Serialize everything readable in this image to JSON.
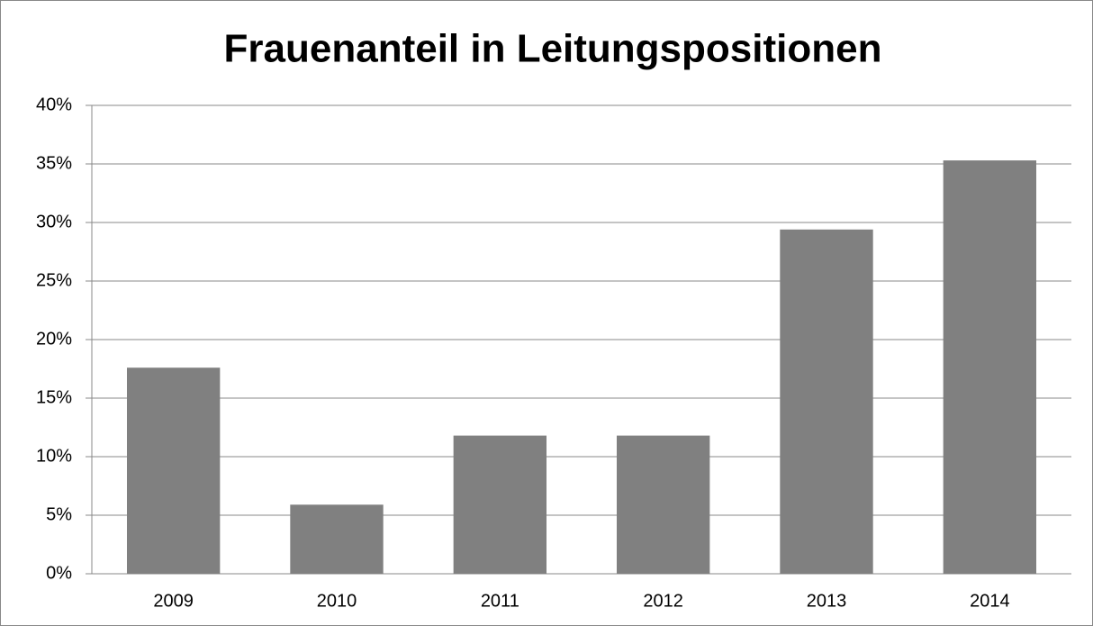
{
  "chart_data": {
    "type": "bar",
    "title": "Frauenanteil in Leitungspositionen",
    "categories": [
      "2009",
      "2010",
      "2011",
      "2012",
      "2013",
      "2014"
    ],
    "values": [
      17.6,
      5.9,
      11.8,
      11.8,
      29.4,
      35.3
    ],
    "color": "#808080",
    "ylim": [
      0,
      40
    ],
    "yticks": [
      {
        "value": 0,
        "label": "0%"
      },
      {
        "value": 5,
        "label": "5%"
      },
      {
        "value": 10,
        "label": "10%"
      },
      {
        "value": 15,
        "label": "15%"
      },
      {
        "value": 20,
        "label": "20%"
      },
      {
        "value": 25,
        "label": "25%"
      },
      {
        "value": 30,
        "label": "30%"
      },
      {
        "value": 35,
        "label": "35%"
      },
      {
        "value": 40,
        "label": "40%"
      }
    ],
    "grid": true
  }
}
